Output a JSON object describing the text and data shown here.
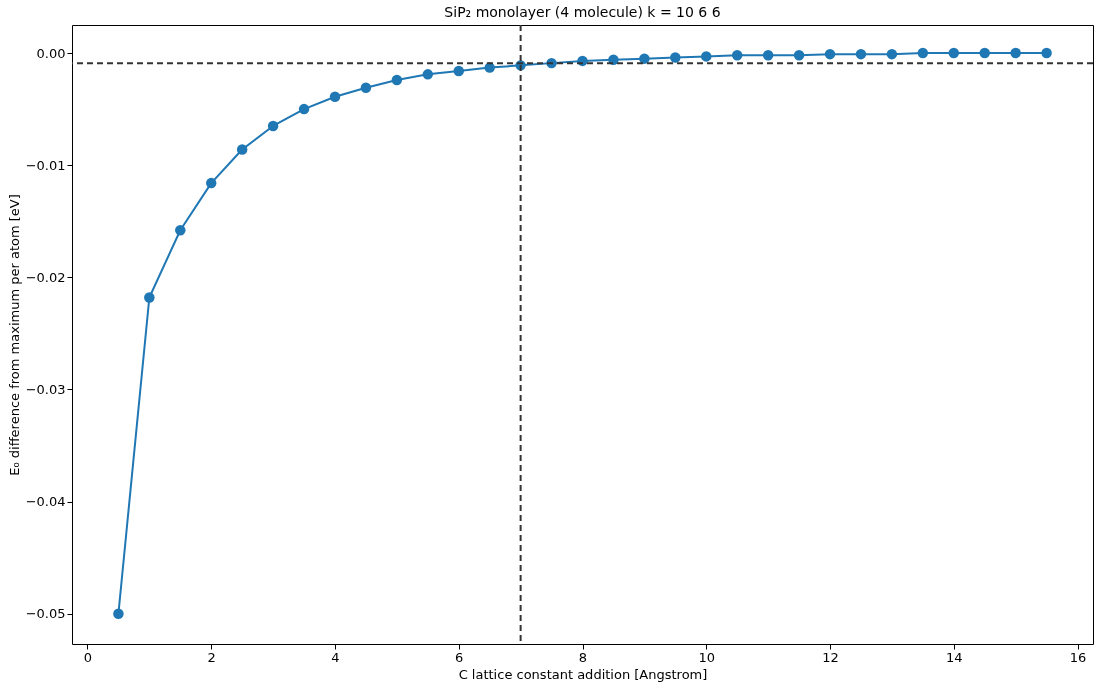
{
  "chart_data": {
    "type": "line",
    "title": "SiP₂ monolayer (4 molecule) k = 10 6 6",
    "xlabel": "C lattice constant addition [Angstrom]",
    "ylabel": "E₀ difference from maximum per atom [eV]",
    "x": [
      0.5,
      1.0,
      1.5,
      2.0,
      2.5,
      3.0,
      3.5,
      4.0,
      4.5,
      5.0,
      5.5,
      6.0,
      6.5,
      7.0,
      7.5,
      8.0,
      8.5,
      9.0,
      9.5,
      10.0,
      10.5,
      11.0,
      11.5,
      12.0,
      12.5,
      13.0,
      13.5,
      14.0,
      14.5,
      15.0,
      15.5
    ],
    "series": [
      {
        "color": "#1f77b4",
        "values": [
          -0.05,
          -0.0218,
          -0.0158,
          -0.0116,
          -0.0086,
          -0.0065,
          -0.005,
          -0.0039,
          -0.0031,
          -0.0024,
          -0.0019,
          -0.0016,
          -0.0013,
          -0.0011,
          -0.0009,
          -0.0007,
          -0.0006,
          -0.0005,
          -0.0004,
          -0.0003,
          -0.0002,
          -0.0002,
          -0.0002,
          -0.0001,
          -0.0001,
          -0.0001,
          0.0,
          0.0,
          0.0,
          0.0,
          0.0
        ]
      }
    ],
    "xlim": [
      -0.25,
      16.25
    ],
    "xticks": [
      0,
      2,
      4,
      6,
      8,
      10,
      12,
      14,
      16
    ],
    "ylim": [
      -0.0527,
      0.0025
    ],
    "yticks": [
      {
        "value": 0,
        "label": "0.00"
      },
      {
        "value": -0.01,
        "label": "−0.01"
      },
      {
        "value": -0.02,
        "label": "−0.02"
      },
      {
        "value": -0.03,
        "label": "−0.03"
      },
      {
        "value": -0.04,
        "label": "−0.04"
      },
      {
        "value": -0.05,
        "label": "−0.05"
      }
    ],
    "ref_lines": [
      {
        "axis": "y",
        "value": -0.0009,
        "color": "#333333",
        "line_style": "dashed"
      },
      {
        "axis": "x",
        "value": 7,
        "color": "#333333",
        "line_style": "dashed"
      }
    ],
    "marker": "circle",
    "line_style": "solid",
    "grid": false
  }
}
